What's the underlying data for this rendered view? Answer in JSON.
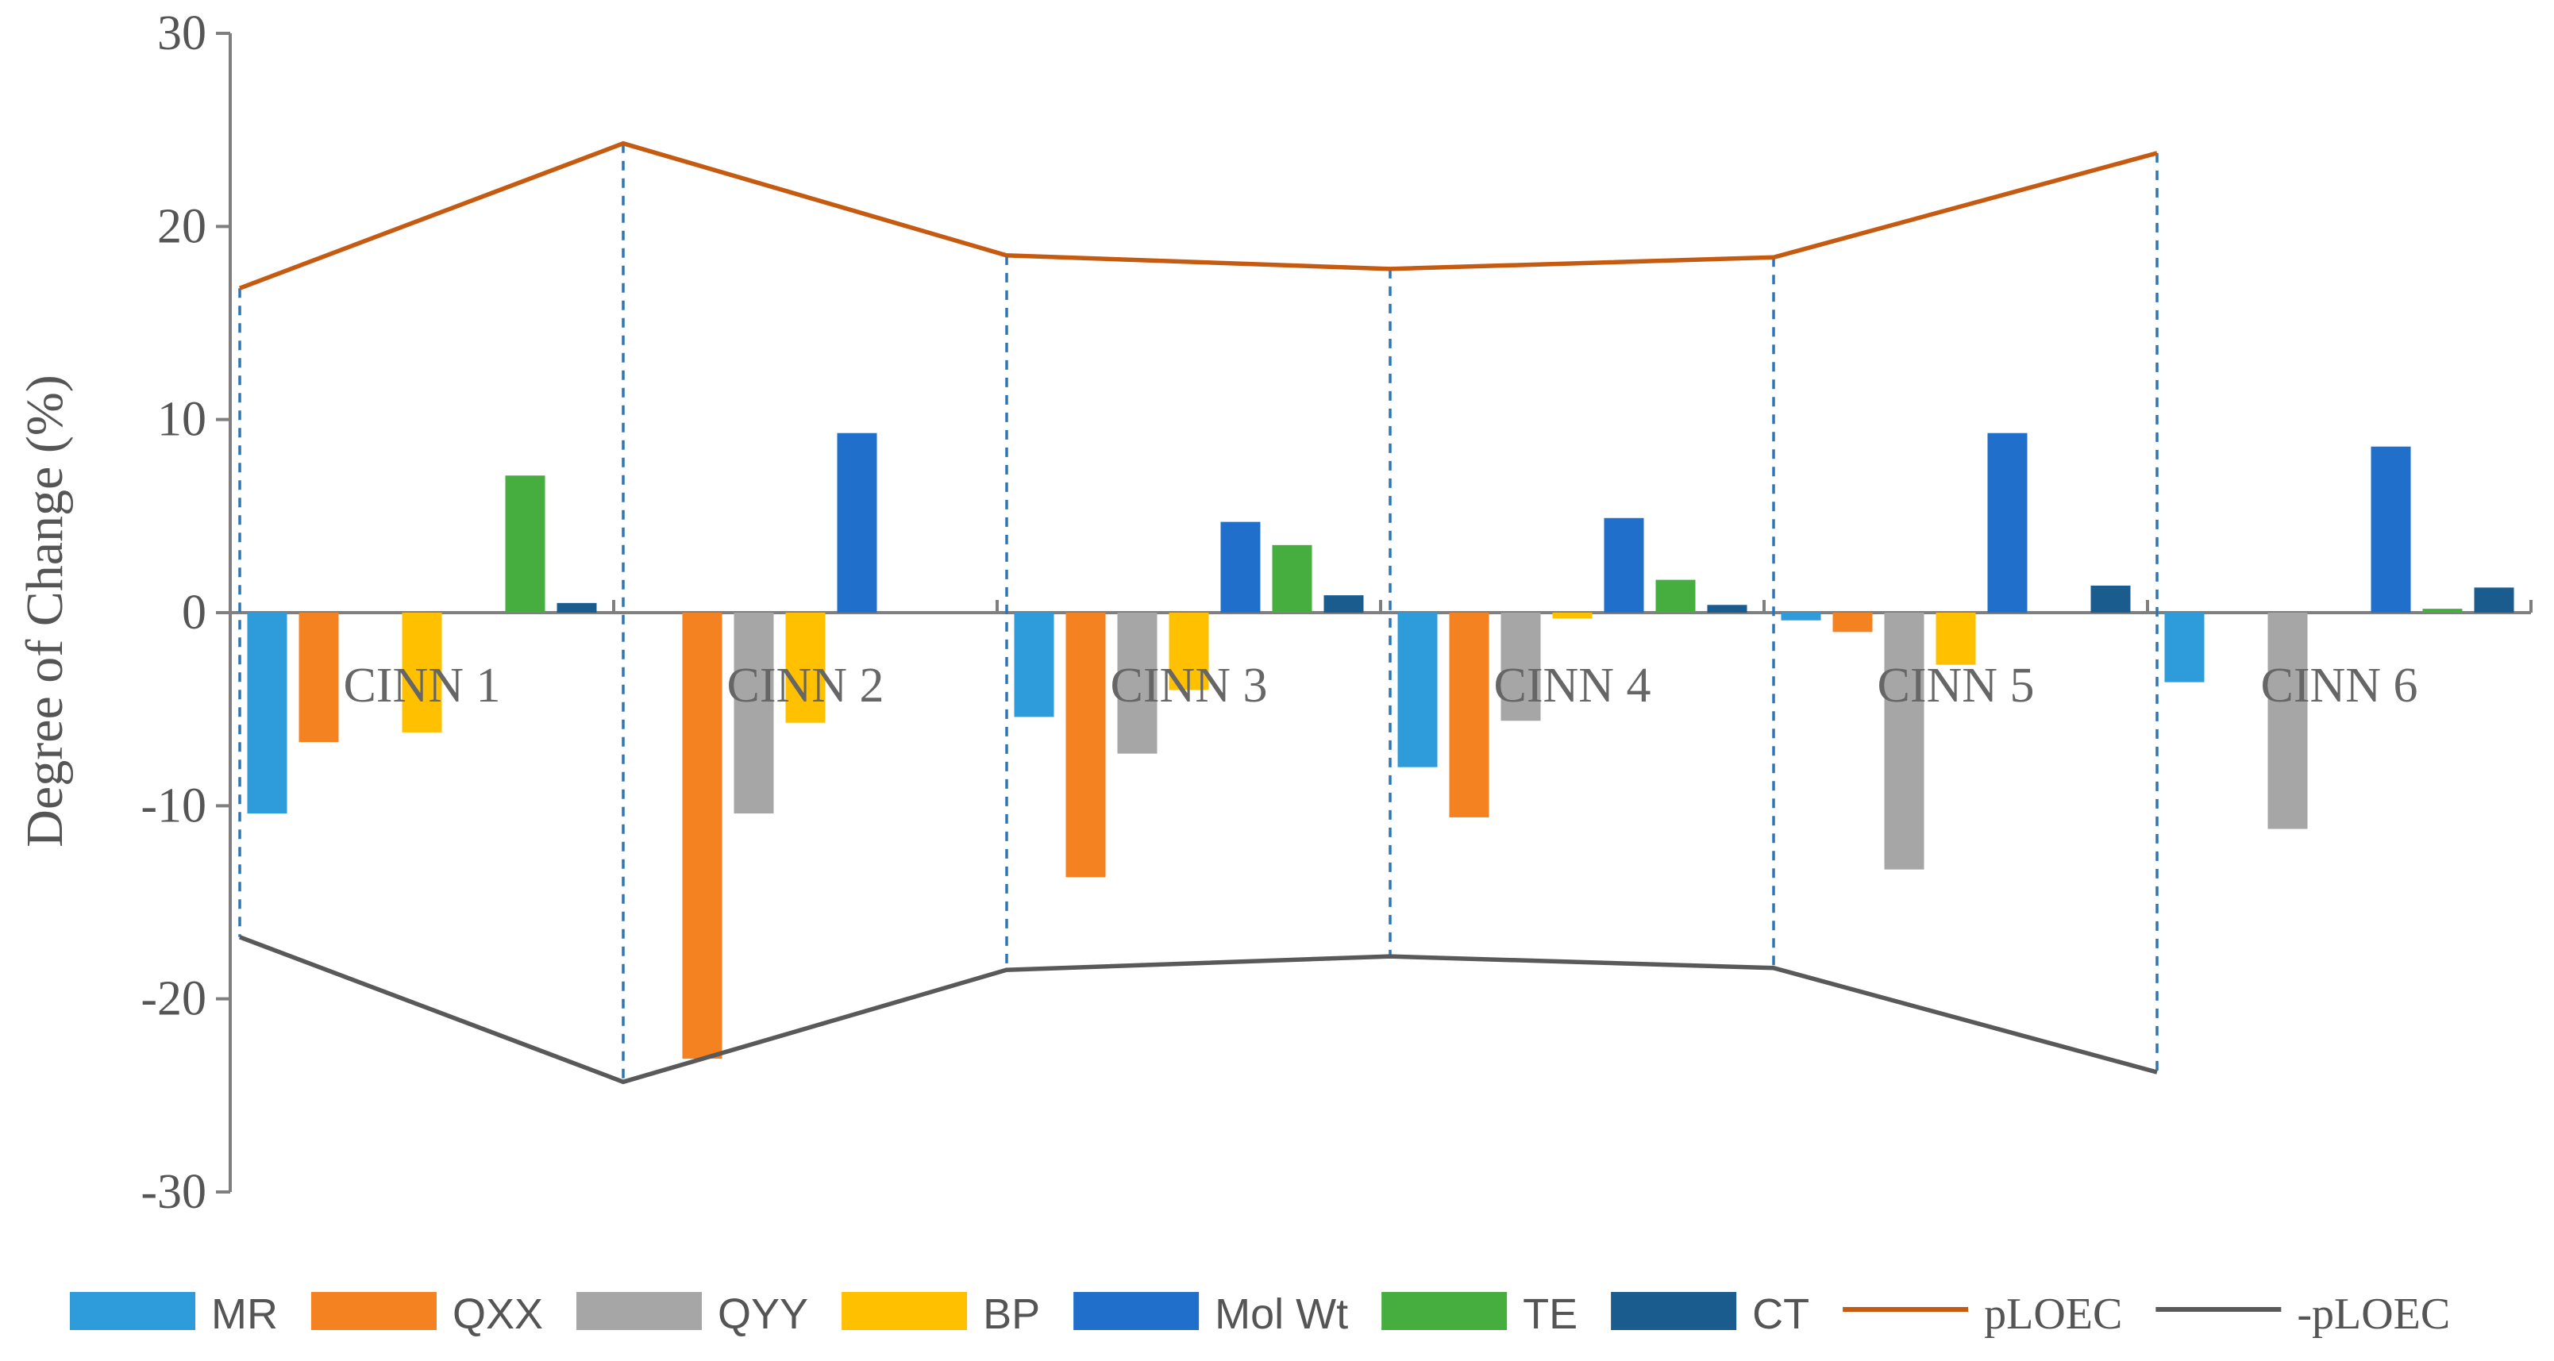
{
  "chart_data": {
    "type": "bar",
    "title": "",
    "xlabel": "",
    "ylabel": "Degree of Change (%)",
    "ylim": [
      -30,
      30
    ],
    "yticks": [
      30,
      20,
      10,
      0,
      -10,
      -20,
      -30
    ],
    "categories": [
      "CINN 1",
      "CINN 2",
      "CINN 3",
      "CINN 4",
      "CINN 5",
      "CINN 6"
    ],
    "series": [
      {
        "name": "MR",
        "color": "#2E9BDA",
        "values": [
          -10.4,
          0,
          -5.4,
          -8.0,
          -0.4,
          -3.6
        ]
      },
      {
        "name": "QXX",
        "color": "#F58220",
        "values": [
          -6.7,
          -23.1,
          -13.7,
          -10.6,
          -1.0,
          0
        ]
      },
      {
        "name": "QYY",
        "color": "#A6A6A6",
        "values": [
          0,
          -10.4,
          -7.3,
          -5.6,
          -13.3,
          -11.2
        ]
      },
      {
        "name": "BP",
        "color": "#FFC000",
        "values": [
          -6.2,
          -5.7,
          -4.0,
          -0.3,
          -2.7,
          0
        ]
      },
      {
        "name": "Mol Wt",
        "color": "#1F6FCB",
        "values": [
          0,
          9.3,
          4.7,
          4.9,
          9.3,
          8.6
        ]
      },
      {
        "name": "TE",
        "color": "#45AE3E",
        "values": [
          7.1,
          0,
          3.5,
          1.7,
          0,
          0.2
        ]
      },
      {
        "name": "CT",
        "color": "#1B5C8E",
        "values": [
          0.5,
          0,
          0.9,
          0.4,
          1.4,
          1.3
        ]
      }
    ],
    "lines": [
      {
        "name": "pLOEC",
        "color": "#C55A11",
        "values": [
          16.8,
          24.3,
          18.5,
          17.8,
          18.4,
          23.8
        ]
      },
      {
        "name": "-pLOEC",
        "color": "#595959",
        "values": [
          -16.8,
          -24.3,
          -18.5,
          -17.8,
          -18.4,
          -23.8
        ]
      }
    ],
    "grid": false,
    "legend": "bottom"
  }
}
